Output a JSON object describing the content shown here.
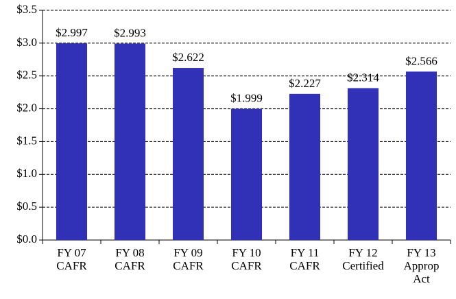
{
  "chart_data": {
    "type": "bar",
    "categories": [
      "FY 07\nCAFR",
      "FY 08\nCAFR",
      "FY 09\nCAFR",
      "FY 10\nCAFR",
      "FY 11\nCAFR",
      "FY 12\nCertified",
      "FY 13\nApprop\nAct"
    ],
    "values": [
      2.997,
      2.993,
      2.622,
      1.999,
      2.227,
      2.314,
      2.566
    ],
    "value_labels": [
      "$2.997",
      "$2.993",
      "$2.622",
      "$1.999",
      "$2.227",
      "$2.314",
      "$2.566"
    ],
    "color": "#3131b8",
    "ylim": [
      0,
      3.5
    ],
    "yticks": [
      {
        "value": 0,
        "label": "$0.0"
      },
      {
        "value": 0.5,
        "label": "$0.5"
      },
      {
        "value": 1,
        "label": "$1.0"
      },
      {
        "value": 1.5,
        "label": "$1.5"
      },
      {
        "value": 2,
        "label": "$2.0"
      },
      {
        "value": 2.5,
        "label": "$2.5"
      },
      {
        "value": 3,
        "label": "$3.0"
      },
      {
        "value": 3.5,
        "label": "$3.5"
      }
    ],
    "grid": true
  }
}
